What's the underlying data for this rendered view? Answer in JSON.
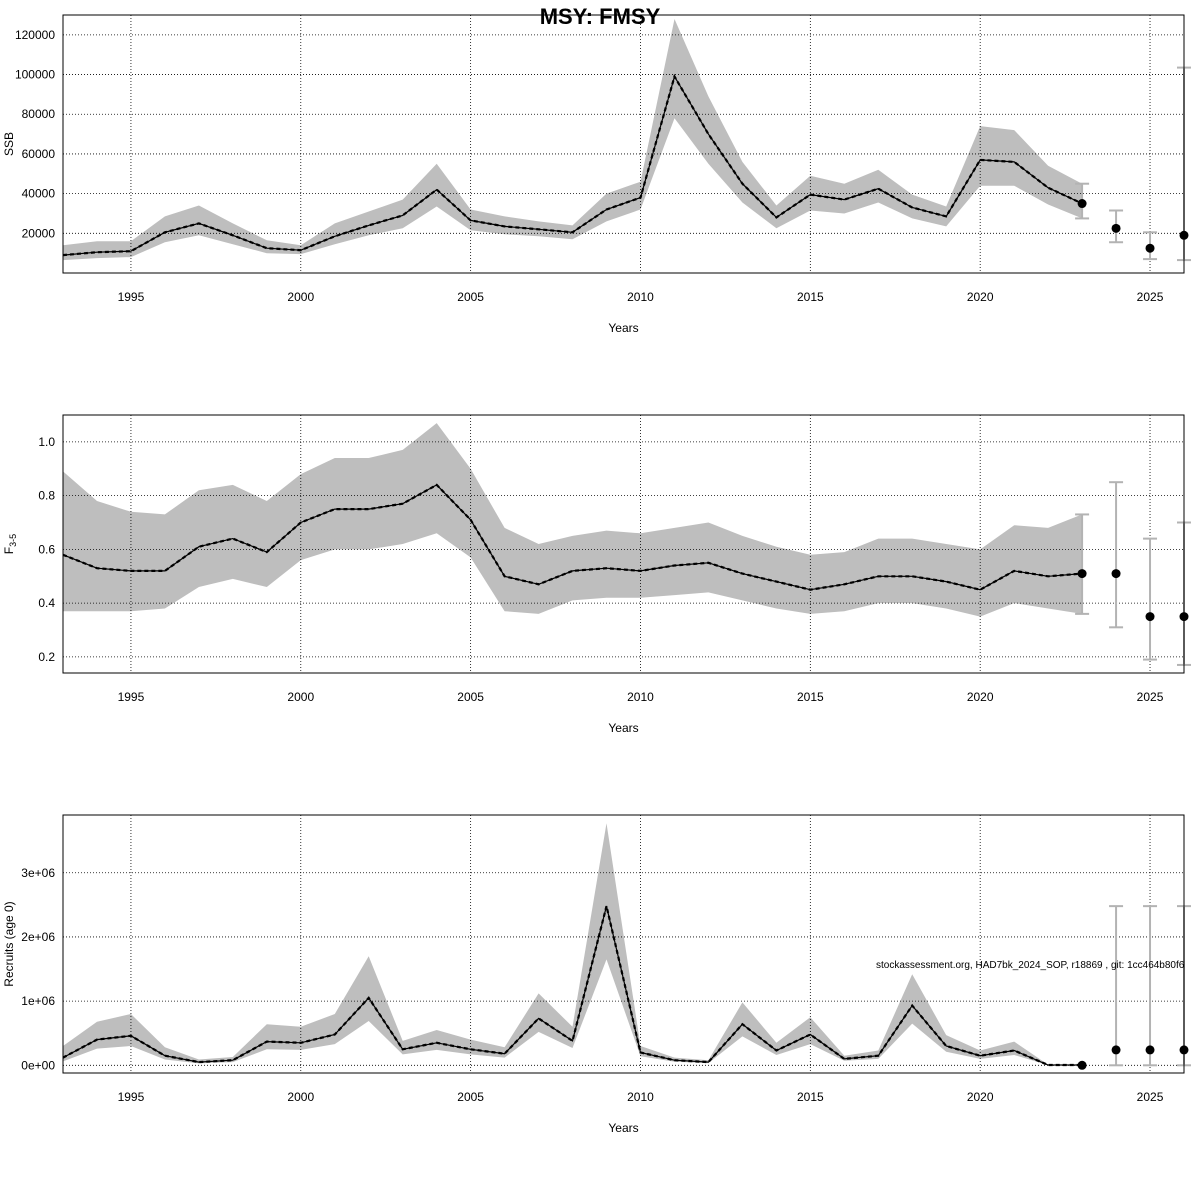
{
  "title": "MSY: FMSY",
  "footnote": "stockassessment.org, HAD7bk_2024_SOP, r18869 , git: 1cc464b80f6",
  "colors": {
    "band": "#bebebe",
    "line": "#000000",
    "grid": "#000000",
    "errorbar": "#b3b3b3",
    "point": "#000000"
  },
  "chart_data": [
    {
      "type": "line",
      "name": "ssb-panel",
      "xlabel": "Years",
      "ylabel": "SSB",
      "xlim": [
        1993,
        2026
      ],
      "ylim": [
        0,
        130000
      ],
      "xticks": [
        1995,
        2000,
        2005,
        2010,
        2015,
        2020,
        2025
      ],
      "yticks": [
        20000,
        40000,
        60000,
        80000,
        100000,
        120000
      ],
      "ytick_labels": [
        "20000",
        "40000",
        "60000",
        "80000",
        "100000",
        "120000"
      ],
      "grid": true,
      "x": [
        1993,
        1994,
        1995,
        1996,
        1997,
        1998,
        1999,
        2000,
        2001,
        2002,
        2003,
        2004,
        2005,
        2006,
        2007,
        2008,
        2009,
        2010,
        2011,
        2012,
        2013,
        2014,
        2015,
        2016,
        2017,
        2018,
        2019,
        2020,
        2021,
        2022,
        2023
      ],
      "estimate": [
        9000,
        10500,
        11000,
        20500,
        25000,
        19000,
        12500,
        11500,
        18500,
        24000,
        29000,
        42000,
        26500,
        23500,
        22000,
        20500,
        32000,
        38000,
        99000,
        70000,
        45000,
        28000,
        39500,
        37000,
        42500,
        33000,
        28500,
        57000,
        56000,
        43000,
        35000
      ],
      "lower": [
        6500,
        7500,
        8000,
        15500,
        19000,
        14500,
        10000,
        9500,
        14500,
        19000,
        22500,
        33500,
        21500,
        19500,
        18500,
        17000,
        26000,
        32000,
        78000,
        55000,
        35500,
        22500,
        31500,
        30000,
        35500,
        27500,
        23500,
        44000,
        44000,
        34500,
        27500
      ],
      "upper": [
        14000,
        16000,
        16000,
        28500,
        34000,
        25000,
        16500,
        14000,
        25000,
        31000,
        37000,
        55000,
        32000,
        28500,
        26000,
        24000,
        40000,
        46000,
        128000,
        89000,
        56000,
        34000,
        49000,
        45000,
        52000,
        39500,
        33500,
        74000,
        72000,
        54000,
        45000
      ],
      "forecast": [
        {
          "year": 2023,
          "value": 35000,
          "lower": 27500,
          "upper": 45000
        },
        {
          "year": 2024,
          "value": 22500,
          "lower": 15500,
          "upper": 31500
        },
        {
          "year": 2025,
          "value": 12500,
          "lower": 7000,
          "upper": 20500
        },
        {
          "year": 2026,
          "value": 19000,
          "lower": 6500,
          "upper": 103500
        }
      ]
    },
    {
      "type": "line",
      "name": "f-panel",
      "xlabel": "Years",
      "ylabel": "F",
      "ylabel_sub": "3-5",
      "xlim": [
        1993,
        2026
      ],
      "ylim": [
        0.14,
        1.1
      ],
      "xticks": [
        1995,
        2000,
        2005,
        2010,
        2015,
        2020,
        2025
      ],
      "yticks": [
        0.2,
        0.4,
        0.6,
        0.8,
        1.0
      ],
      "ytick_labels": [
        "0.2",
        "0.4",
        "0.6",
        "0.8",
        "1.0"
      ],
      "grid": true,
      "x": [
        1993,
        1994,
        1995,
        1996,
        1997,
        1998,
        1999,
        2000,
        2001,
        2002,
        2003,
        2004,
        2005,
        2006,
        2007,
        2008,
        2009,
        2010,
        2011,
        2012,
        2013,
        2014,
        2015,
        2016,
        2017,
        2018,
        2019,
        2020,
        2021,
        2022,
        2023
      ],
      "estimate": [
        0.58,
        0.53,
        0.52,
        0.52,
        0.61,
        0.64,
        0.59,
        0.7,
        0.75,
        0.75,
        0.77,
        0.84,
        0.71,
        0.5,
        0.47,
        0.52,
        0.53,
        0.52,
        0.54,
        0.55,
        0.51,
        0.48,
        0.45,
        0.47,
        0.5,
        0.5,
        0.48,
        0.45,
        0.52,
        0.5,
        0.51
      ],
      "lower": [
        0.37,
        0.37,
        0.37,
        0.38,
        0.46,
        0.49,
        0.46,
        0.56,
        0.6,
        0.6,
        0.62,
        0.66,
        0.57,
        0.37,
        0.36,
        0.41,
        0.42,
        0.42,
        0.43,
        0.44,
        0.41,
        0.38,
        0.36,
        0.37,
        0.4,
        0.4,
        0.38,
        0.35,
        0.4,
        0.38,
        0.36
      ],
      "upper": [
        0.89,
        0.78,
        0.74,
        0.73,
        0.82,
        0.84,
        0.78,
        0.88,
        0.94,
        0.94,
        0.97,
        1.07,
        0.9,
        0.68,
        0.62,
        0.65,
        0.67,
        0.66,
        0.68,
        0.7,
        0.65,
        0.61,
        0.58,
        0.59,
        0.64,
        0.64,
        0.62,
        0.6,
        0.69,
        0.68,
        0.73
      ],
      "forecast": [
        {
          "year": 2023,
          "value": 0.51,
          "lower": 0.36,
          "upper": 0.73
        },
        {
          "year": 2024,
          "value": 0.51,
          "lower": 0.31,
          "upper": 0.85
        },
        {
          "year": 2025,
          "value": 0.35,
          "lower": 0.19,
          "upper": 0.64
        },
        {
          "year": 2026,
          "value": 0.35,
          "lower": 0.17,
          "upper": 0.7
        }
      ]
    },
    {
      "type": "line",
      "name": "recruits-panel",
      "xlabel": "Years",
      "ylabel": "Recruits (age 0)",
      "xlim": [
        1993,
        2026
      ],
      "ylim": [
        -120000,
        3900000
      ],
      "xticks": [
        1995,
        2000,
        2005,
        2010,
        2015,
        2020,
        2025
      ],
      "yticks": [
        0,
        1000000,
        2000000,
        3000000
      ],
      "ytick_labels": [
        "0e+00",
        "1e+06",
        "2e+06",
        "3e+06"
      ],
      "grid": true,
      "x": [
        1993,
        1994,
        1995,
        1996,
        1997,
        1998,
        1999,
        2000,
        2001,
        2002,
        2003,
        2004,
        2005,
        2006,
        2007,
        2008,
        2009,
        2010,
        2011,
        2012,
        2013,
        2014,
        2015,
        2016,
        2017,
        2018,
        2019,
        2020,
        2021,
        2022,
        2023
      ],
      "estimate": [
        120000,
        400000,
        460000,
        150000,
        50000,
        80000,
        370000,
        350000,
        480000,
        1050000,
        250000,
        350000,
        250000,
        180000,
        730000,
        380000,
        2480000,
        200000,
        80000,
        50000,
        640000,
        230000,
        480000,
        100000,
        150000,
        930000,
        300000,
        150000,
        230000,
        5000,
        5000
      ],
      "lower": [
        60000,
        260000,
        300000,
        90000,
        30000,
        50000,
        250000,
        240000,
        330000,
        690000,
        170000,
        240000,
        170000,
        120000,
        520000,
        270000,
        1650000,
        140000,
        55000,
        35000,
        450000,
        160000,
        330000,
        70000,
        100000,
        650000,
        210000,
        100000,
        160000,
        3000,
        3000
      ],
      "upper": [
        300000,
        680000,
        800000,
        280000,
        90000,
        130000,
        640000,
        600000,
        800000,
        1700000,
        380000,
        550000,
        400000,
        280000,
        1120000,
        600000,
        3770000,
        300000,
        120000,
        80000,
        980000,
        350000,
        750000,
        150000,
        230000,
        1420000,
        470000,
        230000,
        370000,
        8000,
        8000
      ],
      "forecast": [
        {
          "year": 2023,
          "value": 0,
          "lower": 0,
          "upper": 0
        },
        {
          "year": 2024,
          "value": 240000,
          "lower": 0,
          "upper": 2480000
        },
        {
          "year": 2025,
          "value": 240000,
          "lower": 0,
          "upper": 2480000
        },
        {
          "year": 2026,
          "value": 240000,
          "lower": 0,
          "upper": 2480000
        }
      ]
    }
  ]
}
